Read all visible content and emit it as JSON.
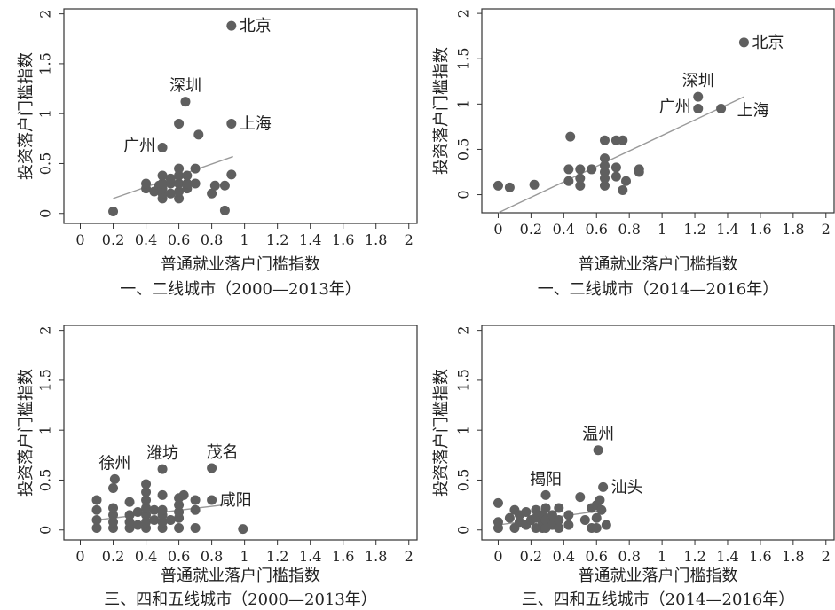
{
  "chart_data": [
    {
      "type": "scatter",
      "title": "一、二线城市（2000—2013年）",
      "xlabel": "普通就业落户门槛指数",
      "ylabel": "投资落户门槛指数",
      "xlim": [
        -0.1,
        2.05
      ],
      "ylim": [
        -0.1,
        2.05
      ],
      "xticks": [
        "0",
        "0.2",
        "0.4",
        "0.6",
        "0.8",
        "1",
        "1.2",
        "1.4",
        "1.6",
        "1.8",
        "2"
      ],
      "yticks": [
        "0",
        "0.5",
        "1",
        "1.5",
        "2"
      ],
      "grid": false,
      "fit_line": {
        "x": [
          0.2,
          0.93
        ],
        "y": [
          0.15,
          0.57
        ]
      },
      "points": [
        {
          "x": 0.2,
          "y": 0.02
        },
        {
          "x": 0.4,
          "y": 0.25
        },
        {
          "x": 0.4,
          "y": 0.3
        },
        {
          "x": 0.45,
          "y": 0.22
        },
        {
          "x": 0.48,
          "y": 0.28
        },
        {
          "x": 0.5,
          "y": 0.15
        },
        {
          "x": 0.5,
          "y": 0.2
        },
        {
          "x": 0.5,
          "y": 0.25
        },
        {
          "x": 0.5,
          "y": 0.3
        },
        {
          "x": 0.5,
          "y": 0.38
        },
        {
          "x": 0.55,
          "y": 0.2
        },
        {
          "x": 0.55,
          "y": 0.3
        },
        {
          "x": 0.55,
          "y": 0.35
        },
        {
          "x": 0.6,
          "y": 0.15
        },
        {
          "x": 0.6,
          "y": 0.22
        },
        {
          "x": 0.6,
          "y": 0.3
        },
        {
          "x": 0.6,
          "y": 0.38
        },
        {
          "x": 0.6,
          "y": 0.45
        },
        {
          "x": 0.65,
          "y": 0.25
        },
        {
          "x": 0.65,
          "y": 0.3
        },
        {
          "x": 0.65,
          "y": 0.38
        },
        {
          "x": 0.7,
          "y": 0.3
        },
        {
          "x": 0.7,
          "y": 0.45
        },
        {
          "x": 0.8,
          "y": 0.2
        },
        {
          "x": 0.82,
          "y": 0.28
        },
        {
          "x": 0.88,
          "y": 0.28
        },
        {
          "x": 0.88,
          "y": 0.03
        },
        {
          "x": 0.92,
          "y": 0.39
        },
        {
          "x": 0.72,
          "y": 0.79
        },
        {
          "x": 0.6,
          "y": 0.9
        },
        {
          "x": 0.5,
          "y": 0.66
        },
        {
          "x": 0.92,
          "y": 0.9
        },
        {
          "x": 0.64,
          "y": 1.12
        },
        {
          "x": 0.92,
          "y": 1.88
        }
      ],
      "labels": [
        {
          "text": "北京",
          "x": 0.92,
          "y": 1.88,
          "pos": "right"
        },
        {
          "text": "深圳",
          "x": 0.64,
          "y": 1.12,
          "pos": "above"
        },
        {
          "text": "上海",
          "x": 0.92,
          "y": 0.9,
          "pos": "right"
        },
        {
          "text": "广州",
          "x": 0.5,
          "y": 0.66,
          "pos": "left"
        }
      ]
    },
    {
      "type": "scatter",
      "title": "一、二线城市（2014—2016年）",
      "xlabel": "普通就业落户门槛指数",
      "ylabel": "投资落户门槛指数",
      "xlim": [
        -0.1,
        2.05
      ],
      "ylim": [
        -0.2,
        2.05
      ],
      "xticks": [
        "0",
        "0.2",
        "0.4",
        "0.6",
        "0.8",
        "1",
        "1.2",
        "1.4",
        "1.6",
        "1.8",
        "2"
      ],
      "yticks": [
        "0",
        "0.5",
        "1",
        "1.5",
        "2"
      ],
      "grid": false,
      "fit_line": {
        "x": [
          0,
          1.5
        ],
        "y": [
          -0.2,
          1.08
        ]
      },
      "points": [
        {
          "x": 0,
          "y": 0.1
        },
        {
          "x": 0.07,
          "y": 0.08
        },
        {
          "x": 0.22,
          "y": 0.11
        },
        {
          "x": 0.43,
          "y": 0.15
        },
        {
          "x": 0.43,
          "y": 0.28
        },
        {
          "x": 0.44,
          "y": 0.64
        },
        {
          "x": 0.5,
          "y": 0.1
        },
        {
          "x": 0.5,
          "y": 0.18
        },
        {
          "x": 0.5,
          "y": 0.28
        },
        {
          "x": 0.57,
          "y": 0.28
        },
        {
          "x": 0.65,
          "y": 0.1
        },
        {
          "x": 0.65,
          "y": 0.18
        },
        {
          "x": 0.65,
          "y": 0.25
        },
        {
          "x": 0.65,
          "y": 0.32
        },
        {
          "x": 0.65,
          "y": 0.4
        },
        {
          "x": 0.65,
          "y": 0.6
        },
        {
          "x": 0.72,
          "y": 0.2
        },
        {
          "x": 0.72,
          "y": 0.3
        },
        {
          "x": 0.72,
          "y": 0.6
        },
        {
          "x": 0.76,
          "y": 0.05
        },
        {
          "x": 0.76,
          "y": 0.6
        },
        {
          "x": 0.78,
          "y": 0.15
        },
        {
          "x": 0.86,
          "y": 0.25
        },
        {
          "x": 0.86,
          "y": 0.28
        },
        {
          "x": 1.22,
          "y": 0.95
        },
        {
          "x": 1.22,
          "y": 1.08
        },
        {
          "x": 1.36,
          "y": 0.95
        },
        {
          "x": 1.5,
          "y": 1.68
        }
      ],
      "labels": [
        {
          "text": "北京",
          "x": 1.5,
          "y": 1.68,
          "pos": "right"
        },
        {
          "text": "深圳",
          "x": 1.22,
          "y": 1.08,
          "pos": "above"
        },
        {
          "text": "广州",
          "x": 1.22,
          "y": 0.95,
          "pos": "left"
        },
        {
          "text": "上海",
          "x": 1.36,
          "y": 0.95,
          "pos": "right-far"
        }
      ]
    },
    {
      "type": "scatter",
      "title": "三、四和五线城市（2000—2013年）",
      "xlabel": "普通就业落户门槛指数",
      "ylabel": "投资落户门槛指数",
      "xlim": [
        -0.1,
        2.05
      ],
      "ylim": [
        -0.1,
        2.05
      ],
      "xticks": [
        "0",
        "0.2",
        "0.4",
        "0.6",
        "0.8",
        "1",
        "1.2",
        "1.4",
        "1.6",
        "1.8",
        "2"
      ],
      "yticks": [
        "0",
        "0.5",
        "1",
        "1.5",
        "2"
      ],
      "grid": false,
      "fit_line": {
        "x": [
          0.1,
          0.87
        ],
        "y": [
          0.1,
          0.25
        ]
      },
      "points": [
        {
          "x": 0.1,
          "y": 0.02
        },
        {
          "x": 0.1,
          "y": 0.1
        },
        {
          "x": 0.1,
          "y": 0.2
        },
        {
          "x": 0.1,
          "y": 0.3
        },
        {
          "x": 0.2,
          "y": 0.02
        },
        {
          "x": 0.2,
          "y": 0.08
        },
        {
          "x": 0.2,
          "y": 0.15
        },
        {
          "x": 0.2,
          "y": 0.22
        },
        {
          "x": 0.2,
          "y": 0.42
        },
        {
          "x": 0.21,
          "y": 0.51
        },
        {
          "x": 0.3,
          "y": 0.02
        },
        {
          "x": 0.3,
          "y": 0.08
        },
        {
          "x": 0.3,
          "y": 0.15
        },
        {
          "x": 0.3,
          "y": 0.28
        },
        {
          "x": 0.35,
          "y": 0.05
        },
        {
          "x": 0.35,
          "y": 0.18
        },
        {
          "x": 0.4,
          "y": 0.02
        },
        {
          "x": 0.4,
          "y": 0.08
        },
        {
          "x": 0.4,
          "y": 0.15
        },
        {
          "x": 0.4,
          "y": 0.22
        },
        {
          "x": 0.4,
          "y": 0.3
        },
        {
          "x": 0.4,
          "y": 0.38
        },
        {
          "x": 0.4,
          "y": 0.46
        },
        {
          "x": 0.45,
          "y": 0.1
        },
        {
          "x": 0.45,
          "y": 0.2
        },
        {
          "x": 0.5,
          "y": 0.02
        },
        {
          "x": 0.5,
          "y": 0.08
        },
        {
          "x": 0.5,
          "y": 0.15
        },
        {
          "x": 0.5,
          "y": 0.2
        },
        {
          "x": 0.5,
          "y": 0.35
        },
        {
          "x": 0.5,
          "y": 0.61
        },
        {
          "x": 0.55,
          "y": 0.1
        },
        {
          "x": 0.6,
          "y": 0.02
        },
        {
          "x": 0.6,
          "y": 0.12
        },
        {
          "x": 0.6,
          "y": 0.18
        },
        {
          "x": 0.6,
          "y": 0.25
        },
        {
          "x": 0.6,
          "y": 0.32
        },
        {
          "x": 0.63,
          "y": 0.35
        },
        {
          "x": 0.7,
          "y": 0.02
        },
        {
          "x": 0.7,
          "y": 0.2
        },
        {
          "x": 0.7,
          "y": 0.3
        },
        {
          "x": 0.8,
          "y": 0.3
        },
        {
          "x": 0.8,
          "y": 0.62
        },
        {
          "x": 0.99,
          "y": 0.01
        }
      ],
      "labels": [
        {
          "text": "徐州",
          "x": 0.21,
          "y": 0.51,
          "pos": "above"
        },
        {
          "text": "潍坊",
          "x": 0.5,
          "y": 0.61,
          "pos": "above"
        },
        {
          "text": "茂名",
          "x": 0.8,
          "y": 0.62,
          "pos": "above-right"
        },
        {
          "text": "咸阳",
          "x": 0.8,
          "y": 0.3,
          "pos": "right"
        }
      ]
    },
    {
      "type": "scatter",
      "title": "三、四和五线城市（2014—2016年）",
      "xlabel": "普通就业落户门槛指数",
      "ylabel": "投资落户门槛指数",
      "xlim": [
        -0.1,
        2.05
      ],
      "ylim": [
        -0.1,
        2.05
      ],
      "xticks": [
        "0",
        "0.2",
        "0.4",
        "0.6",
        "0.8",
        "1",
        "1.2",
        "1.4",
        "1.6",
        "1.8",
        "2"
      ],
      "yticks": [
        "0",
        "0.5",
        "1",
        "1.5",
        "2"
      ],
      "grid": false,
      "fit_line": {
        "x": [
          0,
          0.66
        ],
        "y": [
          0.05,
          0.2
        ]
      },
      "points": [
        {
          "x": 0,
          "y": 0.02
        },
        {
          "x": 0,
          "y": 0.08
        },
        {
          "x": 0,
          "y": 0.27
        },
        {
          "x": 0.07,
          "y": 0.12
        },
        {
          "x": 0.1,
          "y": 0.02
        },
        {
          "x": 0.1,
          "y": 0.2
        },
        {
          "x": 0.13,
          "y": 0.08
        },
        {
          "x": 0.13,
          "y": 0.15
        },
        {
          "x": 0.17,
          "y": 0.05
        },
        {
          "x": 0.17,
          "y": 0.18
        },
        {
          "x": 0.2,
          "y": 0.1
        },
        {
          "x": 0.23,
          "y": 0.02
        },
        {
          "x": 0.23,
          "y": 0.12
        },
        {
          "x": 0.23,
          "y": 0.2
        },
        {
          "x": 0.27,
          "y": 0.02
        },
        {
          "x": 0.27,
          "y": 0.08
        },
        {
          "x": 0.27,
          "y": 0.15
        },
        {
          "x": 0.29,
          "y": 0.02
        },
        {
          "x": 0.29,
          "y": 0.1
        },
        {
          "x": 0.29,
          "y": 0.22
        },
        {
          "x": 0.29,
          "y": 0.35
        },
        {
          "x": 0.33,
          "y": 0.05
        },
        {
          "x": 0.33,
          "y": 0.15
        },
        {
          "x": 0.37,
          "y": 0.02
        },
        {
          "x": 0.37,
          "y": 0.1
        },
        {
          "x": 0.37,
          "y": 0.22
        },
        {
          "x": 0.43,
          "y": 0.05
        },
        {
          "x": 0.43,
          "y": 0.15
        },
        {
          "x": 0.5,
          "y": 0.33
        },
        {
          "x": 0.53,
          "y": 0.1
        },
        {
          "x": 0.57,
          "y": 0.02
        },
        {
          "x": 0.57,
          "y": 0.22
        },
        {
          "x": 0.6,
          "y": 0.02
        },
        {
          "x": 0.6,
          "y": 0.12
        },
        {
          "x": 0.6,
          "y": 0.25
        },
        {
          "x": 0.62,
          "y": 0.3
        },
        {
          "x": 0.63,
          "y": 0.2
        },
        {
          "x": 0.66,
          "y": 0.05
        },
        {
          "x": 0.61,
          "y": 0.8
        },
        {
          "x": 0.64,
          "y": 0.43
        }
      ],
      "labels": [
        {
          "text": "温州",
          "x": 0.61,
          "y": 0.8,
          "pos": "above"
        },
        {
          "text": "揭阳",
          "x": 0.29,
          "y": 0.35,
          "pos": "above"
        },
        {
          "text": "汕头",
          "x": 0.64,
          "y": 0.43,
          "pos": "right"
        }
      ]
    }
  ]
}
